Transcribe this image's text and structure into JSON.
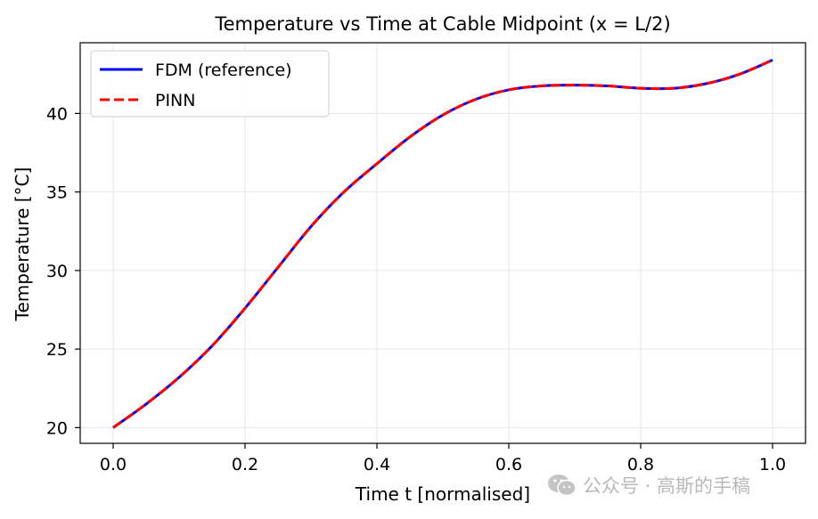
{
  "chart_data": {
    "type": "line",
    "title": "Temperature vs Time at Cable Midpoint (x = L/2)",
    "xlabel": "Time t  [normalised]",
    "ylabel": "Temperature [°C]",
    "xlim": [
      -0.05,
      1.05
    ],
    "ylim": [
      19.0,
      44.5
    ],
    "xticks": [
      0.0,
      0.2,
      0.4,
      0.6,
      0.8,
      1.0
    ],
    "xtick_labels": [
      "0.0",
      "0.2",
      "0.4",
      "0.6",
      "0.8",
      "1.0"
    ],
    "yticks": [
      20,
      25,
      30,
      35,
      40
    ],
    "ytick_labels": [
      "20",
      "25",
      "30",
      "35",
      "40"
    ],
    "grid": true,
    "legend_position": "upper-left",
    "x": [
      0.0,
      0.05,
      0.1,
      0.15,
      0.2,
      0.25,
      0.3,
      0.35,
      0.4,
      0.45,
      0.5,
      0.55,
      0.6,
      0.65,
      0.7,
      0.75,
      0.8,
      0.85,
      0.9,
      0.95,
      1.0
    ],
    "series": [
      {
        "name": "FDM (reference)",
        "color": "#0000ff",
        "style": "solid",
        "values": [
          20.0,
          21.5,
          23.2,
          25.2,
          27.6,
          30.2,
          32.8,
          35.0,
          36.8,
          38.5,
          39.9,
          40.9,
          41.5,
          41.75,
          41.8,
          41.75,
          41.6,
          41.6,
          41.9,
          42.5,
          43.4
        ]
      },
      {
        "name": "PINN",
        "color": "#ff0000",
        "style": "dashed",
        "values": [
          20.0,
          21.5,
          23.2,
          25.2,
          27.6,
          30.2,
          32.8,
          35.0,
          36.8,
          38.5,
          39.9,
          40.9,
          41.5,
          41.75,
          41.8,
          41.75,
          41.6,
          41.6,
          41.9,
          42.5,
          43.4
        ]
      }
    ]
  },
  "watermark": {
    "text": "公众号 · 高斯的手稿",
    "icon": "wechat-icon"
  }
}
